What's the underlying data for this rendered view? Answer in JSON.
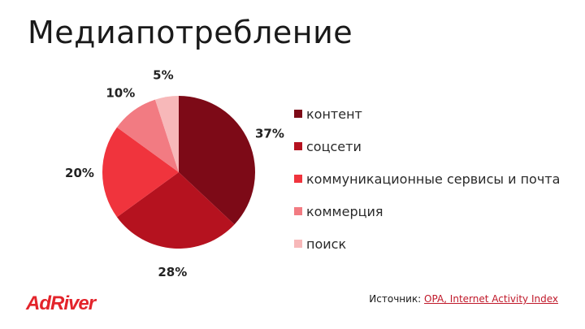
{
  "title": "Медиапотребление",
  "chart_data": {
    "type": "pie",
    "categories": [
      "контент",
      "соцсети",
      "коммуникационные сервисы и почта",
      "коммерция",
      "поиск"
    ],
    "values": [
      37,
      28,
      20,
      10,
      5
    ],
    "data_labels": [
      "37%",
      "28%",
      "20%",
      "10%",
      "5%"
    ],
    "colors": [
      "#7d0a17",
      "#b5121f",
      "#f0343d",
      "#f27b82",
      "#f7b8b9"
    ],
    "legend_position": "right",
    "title": "Медиапотребление"
  },
  "source": {
    "prefix": "Источник: ",
    "link": "OPA, Internet Activity Index"
  },
  "logo": "AdRiver"
}
